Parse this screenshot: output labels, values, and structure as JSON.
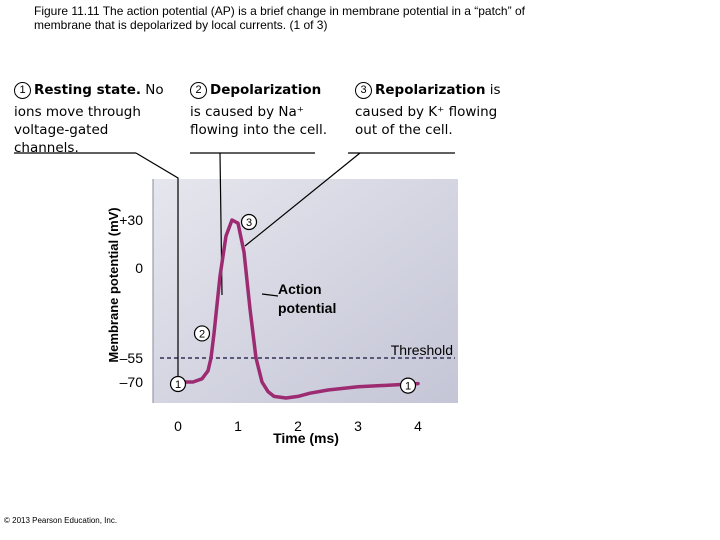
{
  "caption": {
    "line1": "Figure 11.11  The action potential (AP) is a brief change in membrane potential in a “patch” of",
    "line2": "membrane that is depolarized by local currents. (1 of 3)"
  },
  "steps": [
    {
      "number": "1",
      "title": "Resting state.",
      "text_first": "No",
      "text": "ions move through voltage-gated channels."
    },
    {
      "number": "2",
      "title": "Depolarization",
      "text": "is caused by Na⁺ flowing into the cell."
    },
    {
      "number": "3",
      "title": "Repolarization",
      "title_tail": "is",
      "text": "caused by K⁺ flowing out of the cell."
    }
  ],
  "chart_data": {
    "type": "line",
    "xlabel": "Time (ms)",
    "ylabel": "Membrane potential (mV)",
    "x_ticks": [
      "0",
      "1",
      "2",
      "3",
      "4"
    ],
    "y_ticks": [
      "+30",
      "0",
      "–55",
      "–70"
    ],
    "series": [
      {
        "x": [
          0,
          0.25,
          0.4,
          0.5,
          0.55,
          0.6,
          0.7,
          0.8,
          0.9,
          1.0,
          1.1,
          1.2,
          1.3,
          1.4,
          1.5,
          1.6,
          1.8,
          2.0,
          2.2,
          2.5,
          3.0,
          3.5,
          4.0
        ],
        "y": [
          -70,
          -70,
          -68,
          -63,
          -55,
          -40,
          -5,
          20,
          30,
          28,
          10,
          -25,
          -55,
          -70,
          -76,
          -79,
          -80,
          -79,
          -77,
          -75,
          -73,
          -72,
          -71
        ]
      }
    ],
    "threshold_value": -55,
    "threshold_label": "Threshold",
    "annotation": "Action potential",
    "point_markers": [
      {
        "label": "1",
        "x": 0,
        "y": -70
      },
      {
        "label": "2",
        "x": 0.6,
        "y": -40
      },
      {
        "label": "3",
        "x": 1.05,
        "y": 20
      },
      {
        "label": "1",
        "x": 4.0,
        "y": -71
      }
    ]
  },
  "copyright": "© 2013 Pearson Education, Inc."
}
